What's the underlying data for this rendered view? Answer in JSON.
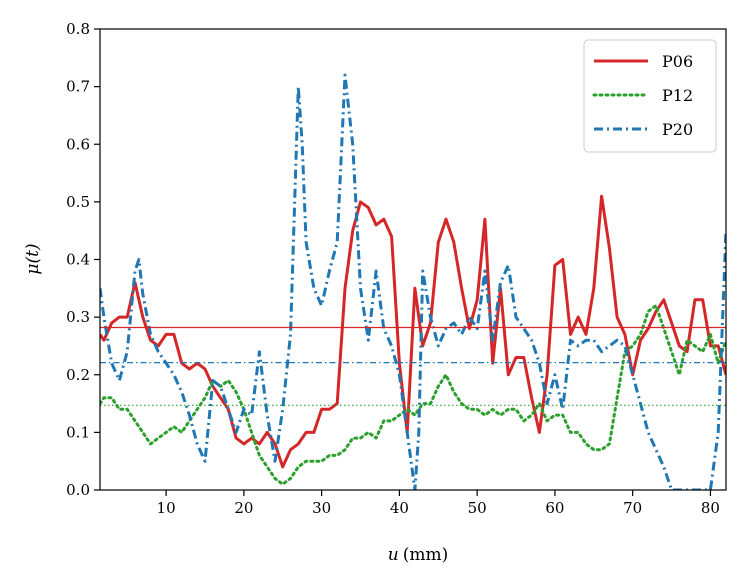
{
  "chart_data": {
    "type": "line",
    "xlabel_var": "u",
    "xlabel_unit": "(mm)",
    "ylabel": "μ(t)",
    "xlim": [
      1.5,
      82
    ],
    "ylim": [
      0,
      0.8
    ],
    "xticks": [
      10,
      20,
      30,
      40,
      50,
      60,
      70,
      80
    ],
    "yticks": [
      0.0,
      0.1,
      0.2,
      0.3,
      0.4,
      0.5,
      0.6,
      0.7,
      0.8
    ],
    "xtick_labels": [
      "10",
      "20",
      "30",
      "40",
      "50",
      "60",
      "70",
      "80"
    ],
    "ytick_labels": [
      "0.0",
      "0.1",
      "0.2",
      "0.3",
      "0.4",
      "0.5",
      "0.6",
      "0.7",
      "0.8"
    ],
    "grid": false,
    "legend": "top-right",
    "series": [
      {
        "name": "P06",
        "color": "#d62728",
        "style": "solid",
        "mean": 0.282,
        "x": [
          1.5,
          2,
          3,
          4,
          5,
          6,
          7,
          8,
          9,
          10,
          11,
          12,
          13,
          14,
          15,
          16,
          17,
          18,
          19,
          20,
          21,
          22,
          23,
          24,
          25,
          26,
          27,
          28,
          29,
          30,
          31,
          32,
          33,
          34,
          35,
          36,
          37,
          38,
          39,
          40,
          41,
          42,
          43,
          44,
          45,
          46,
          47,
          48,
          49,
          50,
          51,
          52,
          53,
          54,
          55,
          56,
          57,
          58,
          59,
          60,
          61,
          62,
          63,
          64,
          65,
          66,
          67,
          68,
          69,
          70,
          71,
          72,
          73,
          74,
          75,
          76,
          77,
          78,
          79,
          80,
          81,
          82
        ],
        "y": [
          0.27,
          0.26,
          0.29,
          0.3,
          0.3,
          0.36,
          0.3,
          0.26,
          0.25,
          0.27,
          0.27,
          0.22,
          0.21,
          0.22,
          0.21,
          0.18,
          0.16,
          0.14,
          0.09,
          0.08,
          0.09,
          0.08,
          0.1,
          0.08,
          0.04,
          0.07,
          0.08,
          0.1,
          0.1,
          0.14,
          0.14,
          0.15,
          0.35,
          0.45,
          0.5,
          0.49,
          0.46,
          0.47,
          0.44,
          0.22,
          0.1,
          0.35,
          0.25,
          0.29,
          0.43,
          0.47,
          0.43,
          0.35,
          0.28,
          0.33,
          0.47,
          0.22,
          0.35,
          0.2,
          0.23,
          0.23,
          0.16,
          0.1,
          0.2,
          0.39,
          0.4,
          0.27,
          0.3,
          0.27,
          0.35,
          0.51,
          0.42,
          0.3,
          0.27,
          0.2,
          0.26,
          0.28,
          0.31,
          0.33,
          0.29,
          0.25,
          0.24,
          0.33,
          0.33,
          0.25,
          0.25,
          0.2
        ]
      },
      {
        "name": "P12",
        "color": "#2ca02c",
        "style": "dotted",
        "mean": 0.147,
        "x": [
          1.5,
          2,
          3,
          4,
          5,
          6,
          7,
          8,
          9,
          10,
          11,
          12,
          13,
          14,
          15,
          16,
          17,
          18,
          19,
          20,
          21,
          22,
          23,
          24,
          25,
          26,
          27,
          28,
          29,
          30,
          31,
          32,
          33,
          34,
          35,
          36,
          37,
          38,
          39,
          40,
          41,
          42,
          43,
          44,
          45,
          46,
          47,
          48,
          49,
          50,
          51,
          52,
          53,
          54,
          55,
          56,
          57,
          58,
          59,
          60,
          61,
          62,
          63,
          64,
          65,
          66,
          67,
          68,
          69,
          70,
          71,
          72,
          73,
          74,
          75,
          76,
          77,
          78,
          79,
          80,
          81,
          82
        ],
        "y": [
          0.15,
          0.16,
          0.16,
          0.14,
          0.14,
          0.12,
          0.1,
          0.08,
          0.09,
          0.1,
          0.11,
          0.1,
          0.12,
          0.14,
          0.16,
          0.19,
          0.18,
          0.19,
          0.17,
          0.14,
          0.1,
          0.06,
          0.04,
          0.02,
          0.01,
          0.02,
          0.04,
          0.05,
          0.05,
          0.05,
          0.06,
          0.06,
          0.07,
          0.09,
          0.09,
          0.1,
          0.09,
          0.12,
          0.12,
          0.13,
          0.14,
          0.13,
          0.15,
          0.15,
          0.18,
          0.2,
          0.17,
          0.15,
          0.14,
          0.14,
          0.13,
          0.14,
          0.13,
          0.14,
          0.14,
          0.12,
          0.13,
          0.15,
          0.12,
          0.13,
          0.13,
          0.1,
          0.1,
          0.08,
          0.07,
          0.07,
          0.08,
          0.16,
          0.24,
          0.25,
          0.27,
          0.31,
          0.32,
          0.28,
          0.24,
          0.2,
          0.26,
          0.25,
          0.24,
          0.27,
          0.22,
          0.26
        ]
      },
      {
        "name": "P20",
        "color": "#1f77b4",
        "style": "dashdot",
        "mean": 0.221,
        "x": [
          1.5,
          2,
          3,
          4,
          5,
          6,
          6.5,
          7,
          8,
          9,
          10,
          11,
          12,
          13,
          14,
          15,
          16,
          17,
          18,
          19,
          20,
          21,
          22,
          23,
          24,
          25,
          26,
          27,
          27.5,
          28,
          29,
          30,
          31,
          32,
          33,
          34,
          35,
          36,
          37,
          38,
          39,
          40,
          41,
          42,
          42.5,
          43,
          44,
          45,
          46,
          47,
          48,
          49,
          50,
          51,
          52,
          53,
          54,
          55,
          56,
          57,
          58,
          59,
          60,
          61,
          62,
          63,
          64,
          65,
          66,
          67,
          68,
          69,
          70,
          71,
          72,
          73,
          74,
          75,
          76,
          77,
          78,
          79,
          80,
          81,
          82
        ],
        "y": [
          0.35,
          0.3,
          0.22,
          0.19,
          0.24,
          0.38,
          0.4,
          0.34,
          0.27,
          0.24,
          0.22,
          0.2,
          0.17,
          0.13,
          0.08,
          0.05,
          0.19,
          0.18,
          0.14,
          0.1,
          0.14,
          0.13,
          0.24,
          0.13,
          0.05,
          0.14,
          0.27,
          0.7,
          0.6,
          0.43,
          0.35,
          0.32,
          0.38,
          0.43,
          0.72,
          0.6,
          0.35,
          0.26,
          0.38,
          0.28,
          0.25,
          0.2,
          0.1,
          0.0,
          0.1,
          0.38,
          0.3,
          0.25,
          0.28,
          0.29,
          0.27,
          0.3,
          0.28,
          0.38,
          0.26,
          0.36,
          0.39,
          0.3,
          0.28,
          0.26,
          0.22,
          0.15,
          0.2,
          0.14,
          0.26,
          0.25,
          0.26,
          0.26,
          0.24,
          0.25,
          0.26,
          0.25,
          0.2,
          0.15,
          0.1,
          0.07,
          0.04,
          0.0,
          0.0,
          0.0,
          0.0,
          0.0,
          0.0,
          0.1,
          0.45
        ]
      }
    ]
  }
}
